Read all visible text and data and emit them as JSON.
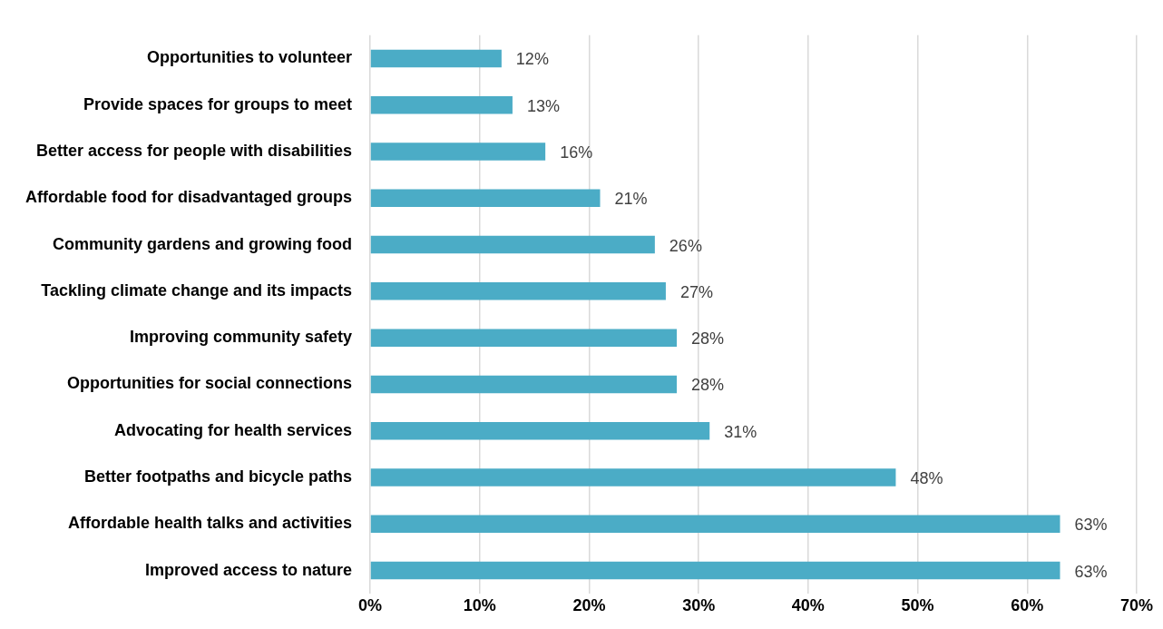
{
  "chart_data": {
    "type": "bar",
    "orientation": "horizontal",
    "categories": [
      "Opportunities to volunteer",
      "Provide spaces for groups to meet",
      "Better access for people with disabilities",
      "Affordable food for disadvantaged groups",
      "Community gardens and growing food",
      "Tackling climate change and its impacts",
      "Improving community safety",
      "Opportunities for social connections",
      "Advocating for health services",
      "Better footpaths and bicycle paths",
      "Affordable health talks and activities",
      "Improved access to nature"
    ],
    "values": [
      12,
      13,
      16,
      21,
      26,
      27,
      28,
      28,
      31,
      48,
      63,
      63
    ],
    "value_labels": [
      "12%",
      "13%",
      "16%",
      "21%",
      "26%",
      "27%",
      "28%",
      "28%",
      "31%",
      "48%",
      "63%",
      "63%"
    ],
    "color": "#4bacc6",
    "xlim": [
      0,
      70
    ],
    "xticks": [
      {
        "value": 0,
        "label": "0%"
      },
      {
        "value": 10,
        "label": "10%"
      },
      {
        "value": 20,
        "label": "20%"
      },
      {
        "value": 30,
        "label": "30%"
      },
      {
        "value": 40,
        "label": "40%"
      },
      {
        "value": 50,
        "label": "50%"
      },
      {
        "value": 60,
        "label": "60%"
      },
      {
        "value": 70,
        "label": "70%"
      }
    ],
    "grid": "x",
    "legend": false
  }
}
